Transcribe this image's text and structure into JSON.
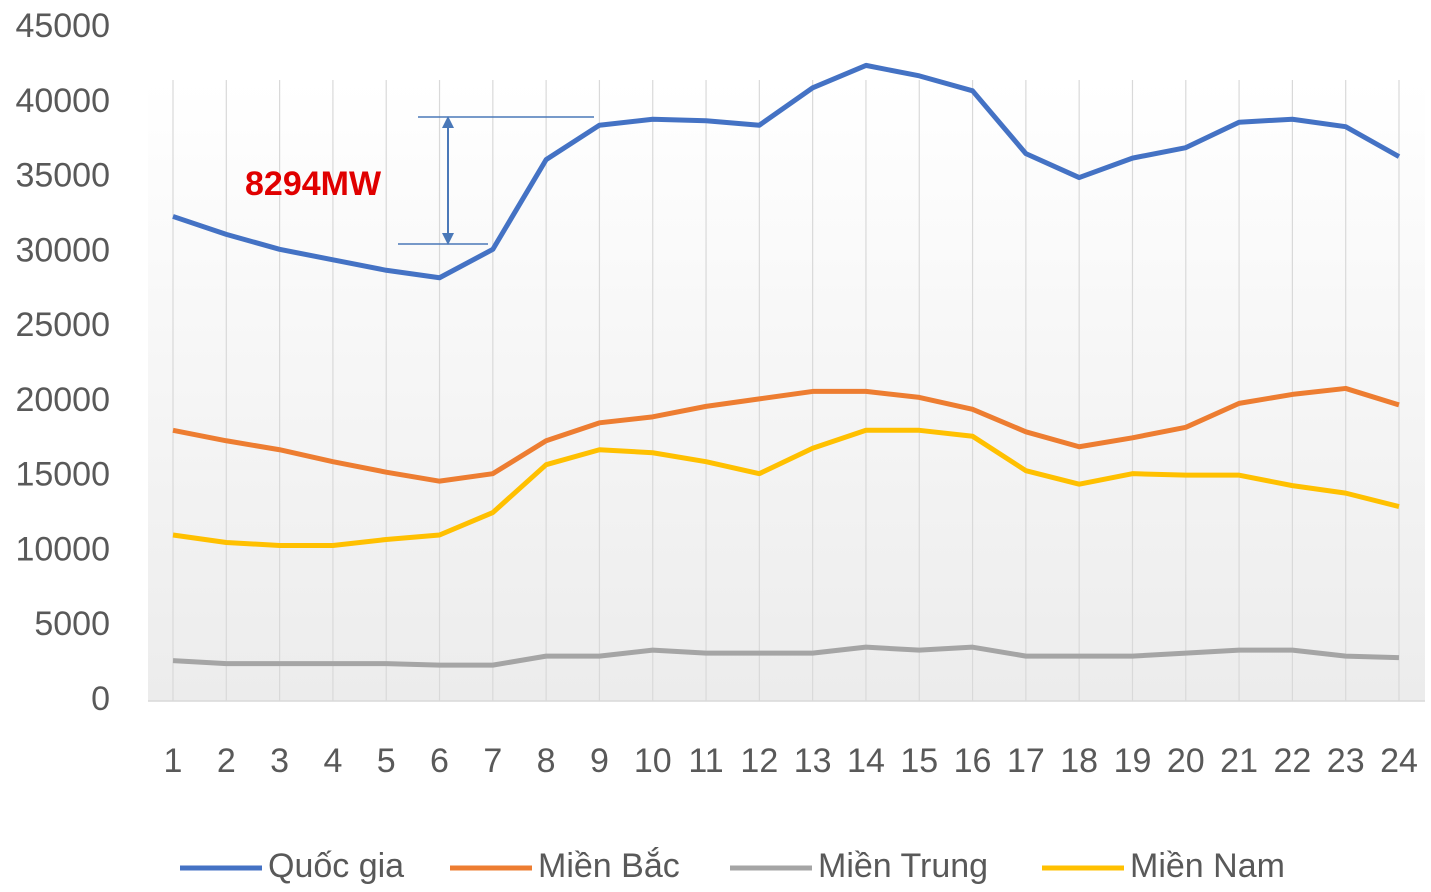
{
  "chart_data": {
    "type": "line",
    "categories": [
      "1",
      "2",
      "3",
      "4",
      "5",
      "6",
      "7",
      "8",
      "9",
      "10",
      "11",
      "12",
      "13",
      "14",
      "15",
      "16",
      "17",
      "18",
      "19",
      "20",
      "21",
      "22",
      "23",
      "24"
    ],
    "series": [
      {
        "name": "Quốc gia",
        "color": "#4472c4",
        "values": [
          32400,
          31200,
          30200,
          29500,
          28800,
          28300,
          30200,
          36200,
          38500,
          38900,
          38800,
          38500,
          41000,
          42500,
          41800,
          40800,
          36600,
          35000,
          36300,
          37000,
          38700,
          38900,
          38400,
          36400
        ]
      },
      {
        "name": "Miền Bắc",
        "color": "#ed7d31",
        "values": [
          18100,
          17400,
          16800,
          16000,
          15300,
          14700,
          15200,
          17400,
          18600,
          19000,
          19700,
          20200,
          20700,
          20700,
          20300,
          19500,
          18000,
          17000,
          17600,
          18300,
          19900,
          20500,
          20900,
          19800
        ]
      },
      {
        "name": "Miền Trung",
        "color": "#a5a5a5",
        "values": [
          2700,
          2500,
          2500,
          2500,
          2500,
          2400,
          2400,
          3000,
          3000,
          3400,
          3200,
          3200,
          3200,
          3600,
          3400,
          3600,
          3000,
          3000,
          3000,
          3200,
          3400,
          3400,
          3000,
          2900
        ]
      },
      {
        "name": "Miền Nam",
        "color": "#ffc000",
        "values": [
          11100,
          10600,
          10400,
          10400,
          10800,
          11100,
          12600,
          15800,
          16800,
          16600,
          16000,
          15200,
          16900,
          18100,
          18100,
          17700,
          15400,
          14500,
          15200,
          15100,
          15100,
          14400,
          13900,
          13000
        ]
      }
    ],
    "ylim": [
      0,
      45000
    ],
    "yticks": [
      0,
      5000,
      10000,
      15000,
      20000,
      25000,
      30000,
      35000,
      40000,
      45000
    ],
    "grid": "x",
    "legend": "bottom",
    "annotation": {
      "text": "8294MW",
      "color": "#e00000"
    }
  }
}
